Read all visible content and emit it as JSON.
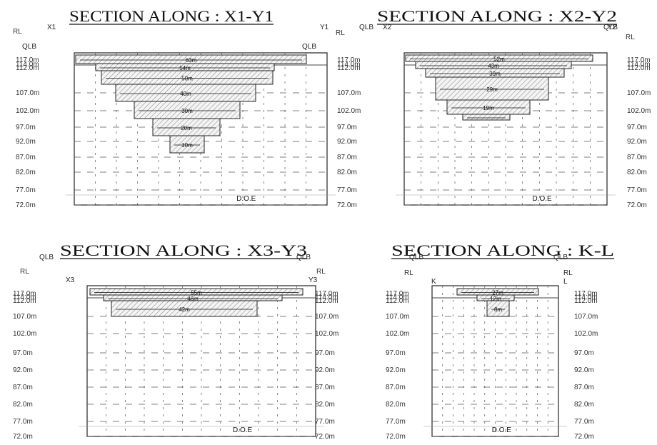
{
  "sections": [
    {
      "id": "x1-y1",
      "title": "SECTION ALONG : X1-Y1",
      "end_left": "X1",
      "end_right": "Y1",
      "datum_label": "RL",
      "bank_left": "QLB",
      "bank_right": "QLB",
      "rl_labels_left": [
        "117.0m",
        "114.0m",
        "112.0m",
        "107.0m",
        "102.0m",
        "97.0m",
        "92.0m",
        "87.0m",
        "82.0m",
        "77.0m",
        "72.0m"
      ],
      "rl_labels_right": [],
      "doe_label": "D.O.E",
      "steps": [
        "63m",
        "54m",
        "50m",
        "40m",
        "30m",
        "20m",
        "10m"
      ]
    },
    {
      "id": "x2-y2",
      "title": "SECTION ALONG : X2-Y2",
      "end_left": "X2",
      "end_right": "Y2",
      "datum_label": "RL",
      "bank_left": "QLB",
      "bank_right": "QLB",
      "rl_labels_left": [
        "117.0m",
        "114.0m",
        "112.0m",
        "107.0m",
        "102.0m",
        "97.0m",
        "92.0m",
        "87.0m",
        "82.0m",
        "77.0m",
        "72.0m"
      ],
      "rl_labels_right": [
        "117.0m",
        "114.0m",
        "112.0m",
        "107.0m",
        "102.0m",
        "97.0m",
        "92.0m",
        "87.0m",
        "82.0m",
        "77.0m",
        "72.0m"
      ],
      "doe_label": "D.O.E",
      "steps": [
        "52m",
        "43m",
        "39m",
        "29m",
        "19m"
      ]
    },
    {
      "id": "x3-y3",
      "title": "SECTION ALONG : X3-Y3",
      "end_left": "X3",
      "end_right": "Y3",
      "datum_label": "RL",
      "bank_left": "QLB",
      "bank_right": "QLB",
      "rl_labels_left": [
        "117.0m",
        "114.0m",
        "112.0m",
        "107.0m",
        "102.0m",
        "97.0m",
        "92.0m",
        "87.0m",
        "82.0m",
        "77.0m",
        "72.0m"
      ],
      "rl_labels_right": [
        "117.0m",
        "114.0m",
        "112.0m",
        "107.0m",
        "102.0m",
        "97.0m",
        "92.0m",
        "87.0m",
        "82.0m",
        "77.0m",
        "72.0m"
      ],
      "doe_label": "D.O.E",
      "steps": [
        "55m",
        "46m",
        "42m"
      ]
    },
    {
      "id": "k-l",
      "title": "SECTION ALONG : K-L",
      "end_left": "K",
      "end_right": "L",
      "datum_label": "RL",
      "bank_left": "QLB",
      "bank_right": "QLB",
      "rl_labels_left": [
        "117.0m",
        "114.0m",
        "112.0m",
        "107.0m",
        "102.0m",
        "97.0m",
        "92.0m",
        "87.0m",
        "82.0m",
        "77.0m",
        "72.0m"
      ],
      "rl_labels_right": [
        "117.0m",
        "114.0m",
        "112.0m",
        "107.0m",
        "102.0m",
        "97.0m",
        "92.0m",
        "87.0m",
        "82.0m",
        "77.0m",
        "72.0m"
      ],
      "doe_label": "D.O.E",
      "steps": [
        "27m",
        "12m",
        "8m"
      ]
    }
  ]
}
